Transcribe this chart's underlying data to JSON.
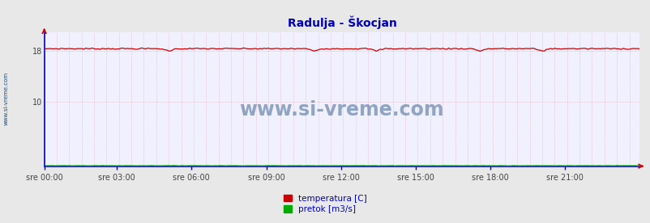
{
  "title": "Radulja - Škocjan",
  "title_color": "#0000bb",
  "title_fontsize": 10,
  "bg_color": "#e8e8e8",
  "plot_bg_color": "#f0f0ff",
  "x_labels": [
    "sre 00:00",
    "sre 03:00",
    "sre 06:00",
    "sre 09:00",
    "sre 12:00",
    "sre 15:00",
    "sre 18:00",
    "sre 21:00"
  ],
  "x_ticks_frac": [
    0.0,
    0.125,
    0.25,
    0.375,
    0.5,
    0.625,
    0.75,
    0.875
  ],
  "num_points": 288,
  "ylim": [
    0,
    20.9
  ],
  "yticks": [
    10,
    18
  ],
  "temp_value": 18.35,
  "temp_color": "#cc0000",
  "pretok_value": 0.08,
  "pretok_color": "#00aa00",
  "grid_v_color": "#dd5555",
  "grid_h_color": "#dd5555",
  "watermark": "www.si-vreme.com",
  "watermark_color": "#1a4a7a",
  "sidebar_text": "www.si-vreme.com",
  "sidebar_color": "#1a4a7a",
  "axis_color": "#0000cc",
  "arrow_color_y": "#cc0000",
  "arrow_color_x": "#cc0000",
  "legend_temp_label": "temperatura [C]",
  "legend_pretok_label": "pretok [m3/s]",
  "legend_color": "#0000bb",
  "tick_label_color": "#444444",
  "tick_label_fontsize": 7
}
